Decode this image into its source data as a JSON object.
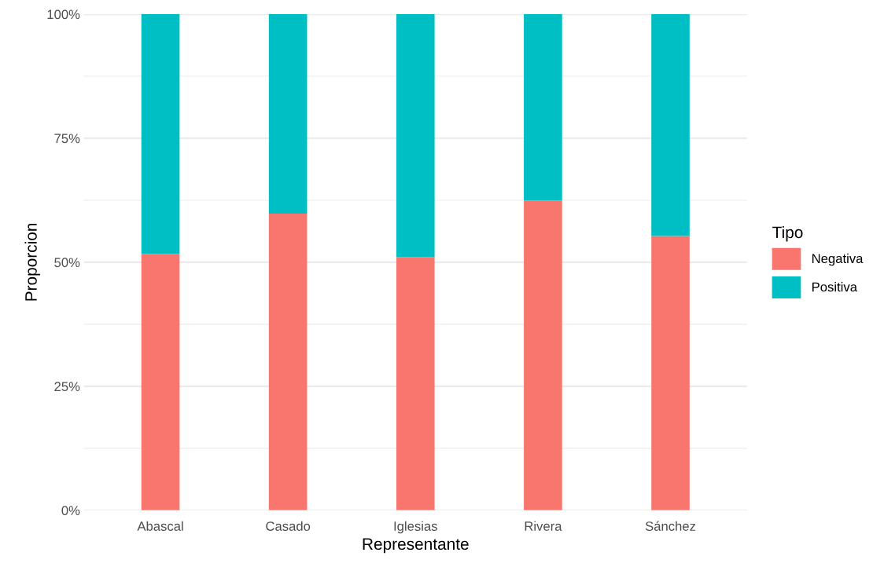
{
  "chart_data": {
    "type": "bar",
    "stacked": true,
    "xlabel": "Representante",
    "ylabel": "Proporcion",
    "legend_title": "Tipo",
    "legend": "right",
    "grid": true,
    "categories": [
      "Abascal",
      "Casado",
      "Iglesias",
      "Rivera",
      "Sánchez"
    ],
    "series": [
      {
        "name": "Negativa",
        "color": "#f8766d",
        "values": [
          51.7,
          59.8,
          51.0,
          62.4,
          55.3
        ]
      },
      {
        "name": "Positiva",
        "color": "#00bfc4",
        "values": [
          48.3,
          40.2,
          49.0,
          37.6,
          44.7
        ]
      }
    ],
    "ylim": [
      0,
      100
    ],
    "yticks": [
      {
        "value": 0,
        "label": "0%"
      },
      {
        "value": 12.5,
        "label": null
      },
      {
        "value": 25,
        "label": "25%"
      },
      {
        "value": 37.5,
        "label": null
      },
      {
        "value": 50,
        "label": "50%"
      },
      {
        "value": 62.5,
        "label": null
      },
      {
        "value": 75,
        "label": "75%"
      },
      {
        "value": 87.5,
        "label": null
      },
      {
        "value": 100,
        "label": "100%"
      }
    ]
  }
}
